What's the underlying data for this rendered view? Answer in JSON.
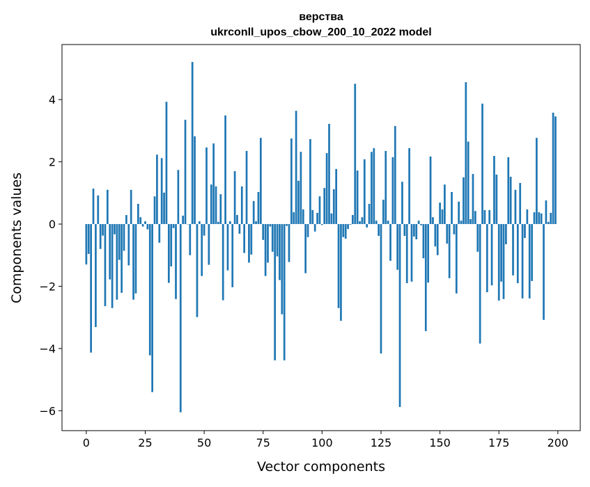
{
  "chart_data": {
    "type": "bar",
    "title": "верства",
    "subtitle": "ukrconll_upos_cbow_200_10_2022 model",
    "xlabel": "Vector components",
    "ylabel": "Components values",
    "xlim": [
      -10.3,
      209.5
    ],
    "ylim": [
      -6.64,
      5.77
    ],
    "xticks": [
      0,
      25,
      50,
      75,
      100,
      125,
      150,
      175,
      200
    ],
    "xtick_labels": [
      "0",
      "25",
      "50",
      "75",
      "100",
      "125",
      "150",
      "175",
      "200"
    ],
    "yticks": [
      -6,
      -4,
      -2,
      0,
      2,
      4
    ],
    "ytick_labels": [
      "−6",
      "−4",
      "−2",
      "0",
      "2",
      "4"
    ],
    "grid": false,
    "color": "#1f77b4",
    "values": [
      -1.3,
      -0.96,
      -4.13,
      1.14,
      -3.31,
      0.92,
      -0.8,
      -0.37,
      -2.64,
      1.1,
      -1.78,
      -2.7,
      -0.33,
      -2.43,
      -1.15,
      -2.21,
      -0.86,
      0.29,
      -1.33,
      1.1,
      -2.43,
      -2.23,
      0.65,
      0.22,
      -0.08,
      0.09,
      -0.17,
      -4.22,
      -5.4,
      0.89,
      2.23,
      -0.6,
      2.12,
      1.01,
      3.93,
      -1.89,
      -1.36,
      -0.13,
      -2.41,
      1.74,
      -6.05,
      0.27,
      3.35,
      -0.01,
      -1.0,
      5.21,
      2.82,
      -2.99,
      0.09,
      -1.67,
      -0.37,
      2.46,
      -1.31,
      1.27,
      2.59,
      1.21,
      0.07,
      0.96,
      -2.45,
      3.49,
      -1.49,
      0.09,
      -2.03,
      1.7,
      0.29,
      -0.31,
      1.21,
      -0.93,
      2.35,
      -1.24,
      -0.98,
      0.74,
      0.09,
      1.03,
      2.77,
      -0.51,
      -1.67,
      -1.24,
      -0.08,
      -0.89,
      -4.38,
      -1.04,
      -1.8,
      -2.9,
      -4.38,
      -0.06,
      -1.22,
      2.75,
      0.38,
      3.64,
      1.39,
      2.32,
      0.47,
      -1.58,
      -0.42,
      2.73,
      0.45,
      -0.24,
      0.36,
      0.89,
      -0.03,
      1.16,
      2.28,
      3.22,
      0.34,
      1.12,
      1.77,
      -2.7,
      -3.11,
      -0.42,
      -0.47,
      -0.16,
      -0.02,
      0.29,
      4.51,
      1.72,
      0.09,
      0.22,
      2.08,
      -0.11,
      0.65,
      2.32,
      2.44,
      0.11,
      -0.38,
      -4.16,
      0.78,
      2.35,
      0.11,
      -1.18,
      2.15,
      3.15,
      -1.47,
      -5.88,
      1.36,
      -0.38,
      -1.9,
      2.44,
      -1.85,
      -0.4,
      -0.49,
      0.11,
      -0.04,
      -1.1,
      -3.44,
      -1.88,
      2.17,
      0.22,
      -0.72,
      -1.0,
      0.69,
      0.47,
      1.27,
      -0.63,
      -1.74,
      1.03,
      -0.33,
      -2.23,
      0.72,
      0.11,
      1.5,
      4.56,
      2.65,
      0.16,
      1.61,
      0.42,
      -0.89,
      -3.84,
      3.87,
      0.45,
      -2.19,
      0.45,
      -1.97,
      2.19,
      1.59,
      -2.46,
      -1.85,
      -2.41,
      -0.65,
      2.15,
      1.52,
      -1.65,
      1.1,
      -1.9,
      1.32,
      -2.39,
      -0.45,
      0.47,
      -2.39,
      -1.83,
      0.38,
      2.77,
      0.38,
      0.34,
      -3.08,
      0.76,
      0.07,
      0.36,
      3.58,
      3.46
    ]
  }
}
